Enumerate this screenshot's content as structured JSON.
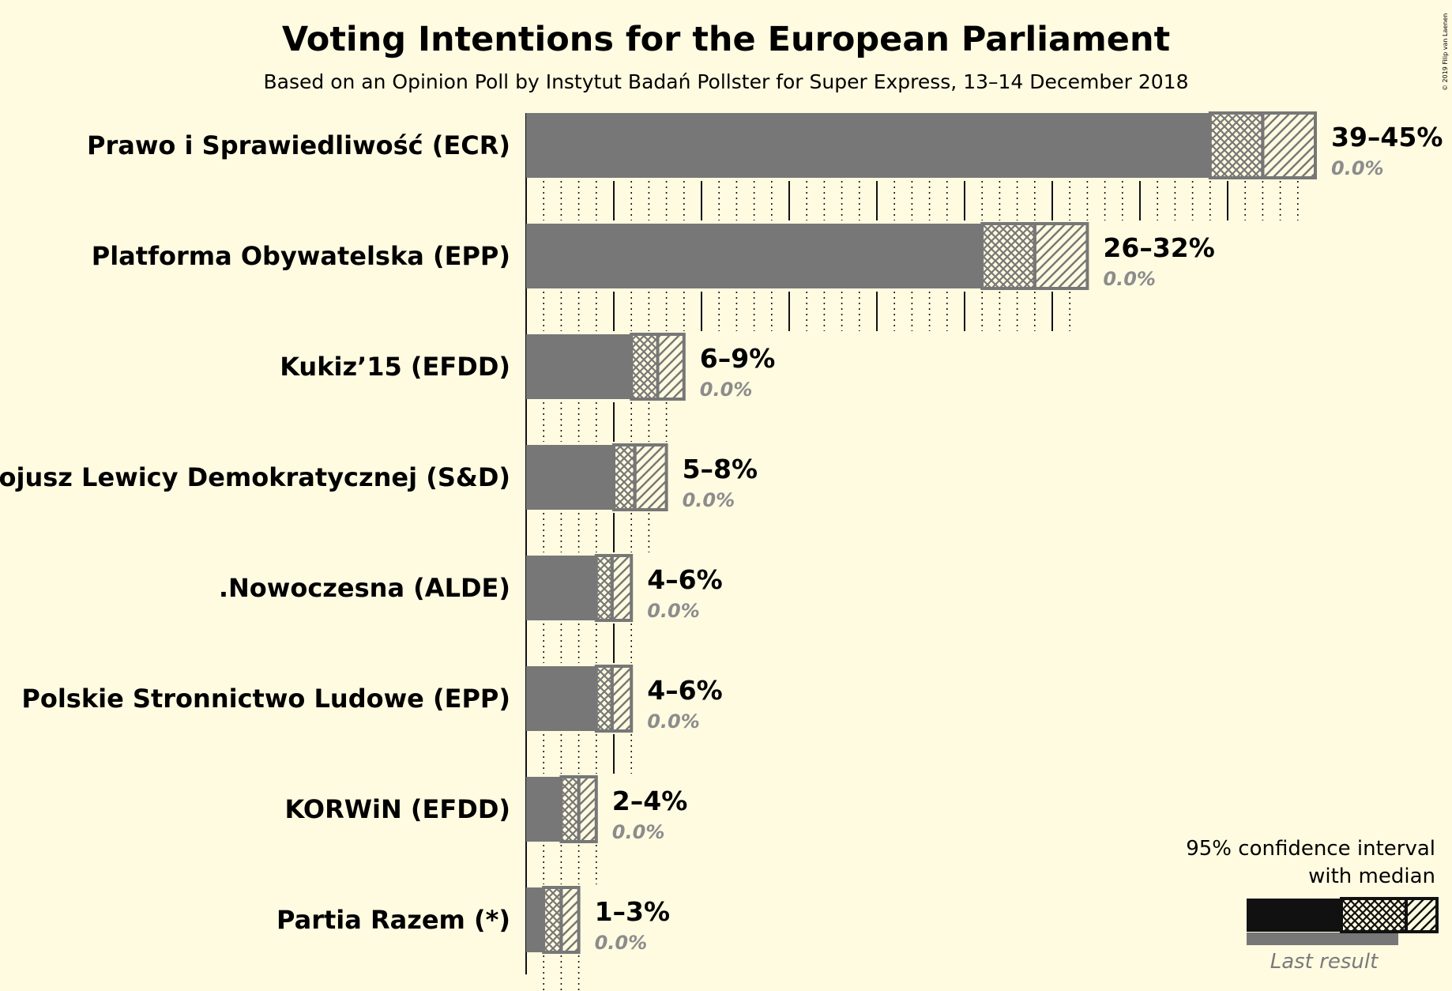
{
  "chart_data": {
    "type": "bar",
    "title": "Voting Intentions for the European Parliament",
    "subtitle": "Based on an Opinion Poll by Instytut Badań Pollster for Super Express, 13–14 December 2018",
    "copyright": "© 2019 Filip van Laenen",
    "categories": [
      "Prawo i Sprawiedliwość (ECR)",
      "Platforma Obywatelska (EPP)",
      "Kukiz’15 (EFDD)",
      "Sojusz Lewicy Demokratycznej (S&D)",
      ".Nowoczesna (ALDE)",
      "Polskie Stronnictwo Ludowe (EPP)",
      "KORWiN (EFDD)",
      "Partia Razem (*)"
    ],
    "ci_low": [
      39,
      26,
      6,
      5,
      4,
      4,
      2,
      1
    ],
    "median": [
      42,
      29,
      7.5,
      6.2,
      4.9,
      4.9,
      3.0,
      2.0
    ],
    "ci_high": [
      45,
      32,
      9,
      8,
      6,
      6,
      4,
      3
    ],
    "seat_max": [
      44,
      31,
      8,
      7,
      6,
      6,
      4,
      3
    ],
    "range_labels": [
      "39–45%",
      "26–32%",
      "6–9%",
      "5–8%",
      "4–6%",
      "4–6%",
      "2–4%",
      "1–3%"
    ],
    "last_result_labels": [
      "0.0%",
      "0.0%",
      "0.0%",
      "0.0%",
      "0.0%",
      "0.0%",
      "0.0%",
      "0.0%"
    ],
    "xlim": [
      0,
      45
    ],
    "legend": {
      "position": "bottom-right",
      "line1": "95% confidence interval",
      "line2": "with median",
      "last_result": "Last result"
    },
    "colors": {
      "background": "#fffbe1",
      "bar": "#777777",
      "legend_bar": "#111111",
      "last_label": "#8c8c8c",
      "text": "#111111"
    }
  }
}
